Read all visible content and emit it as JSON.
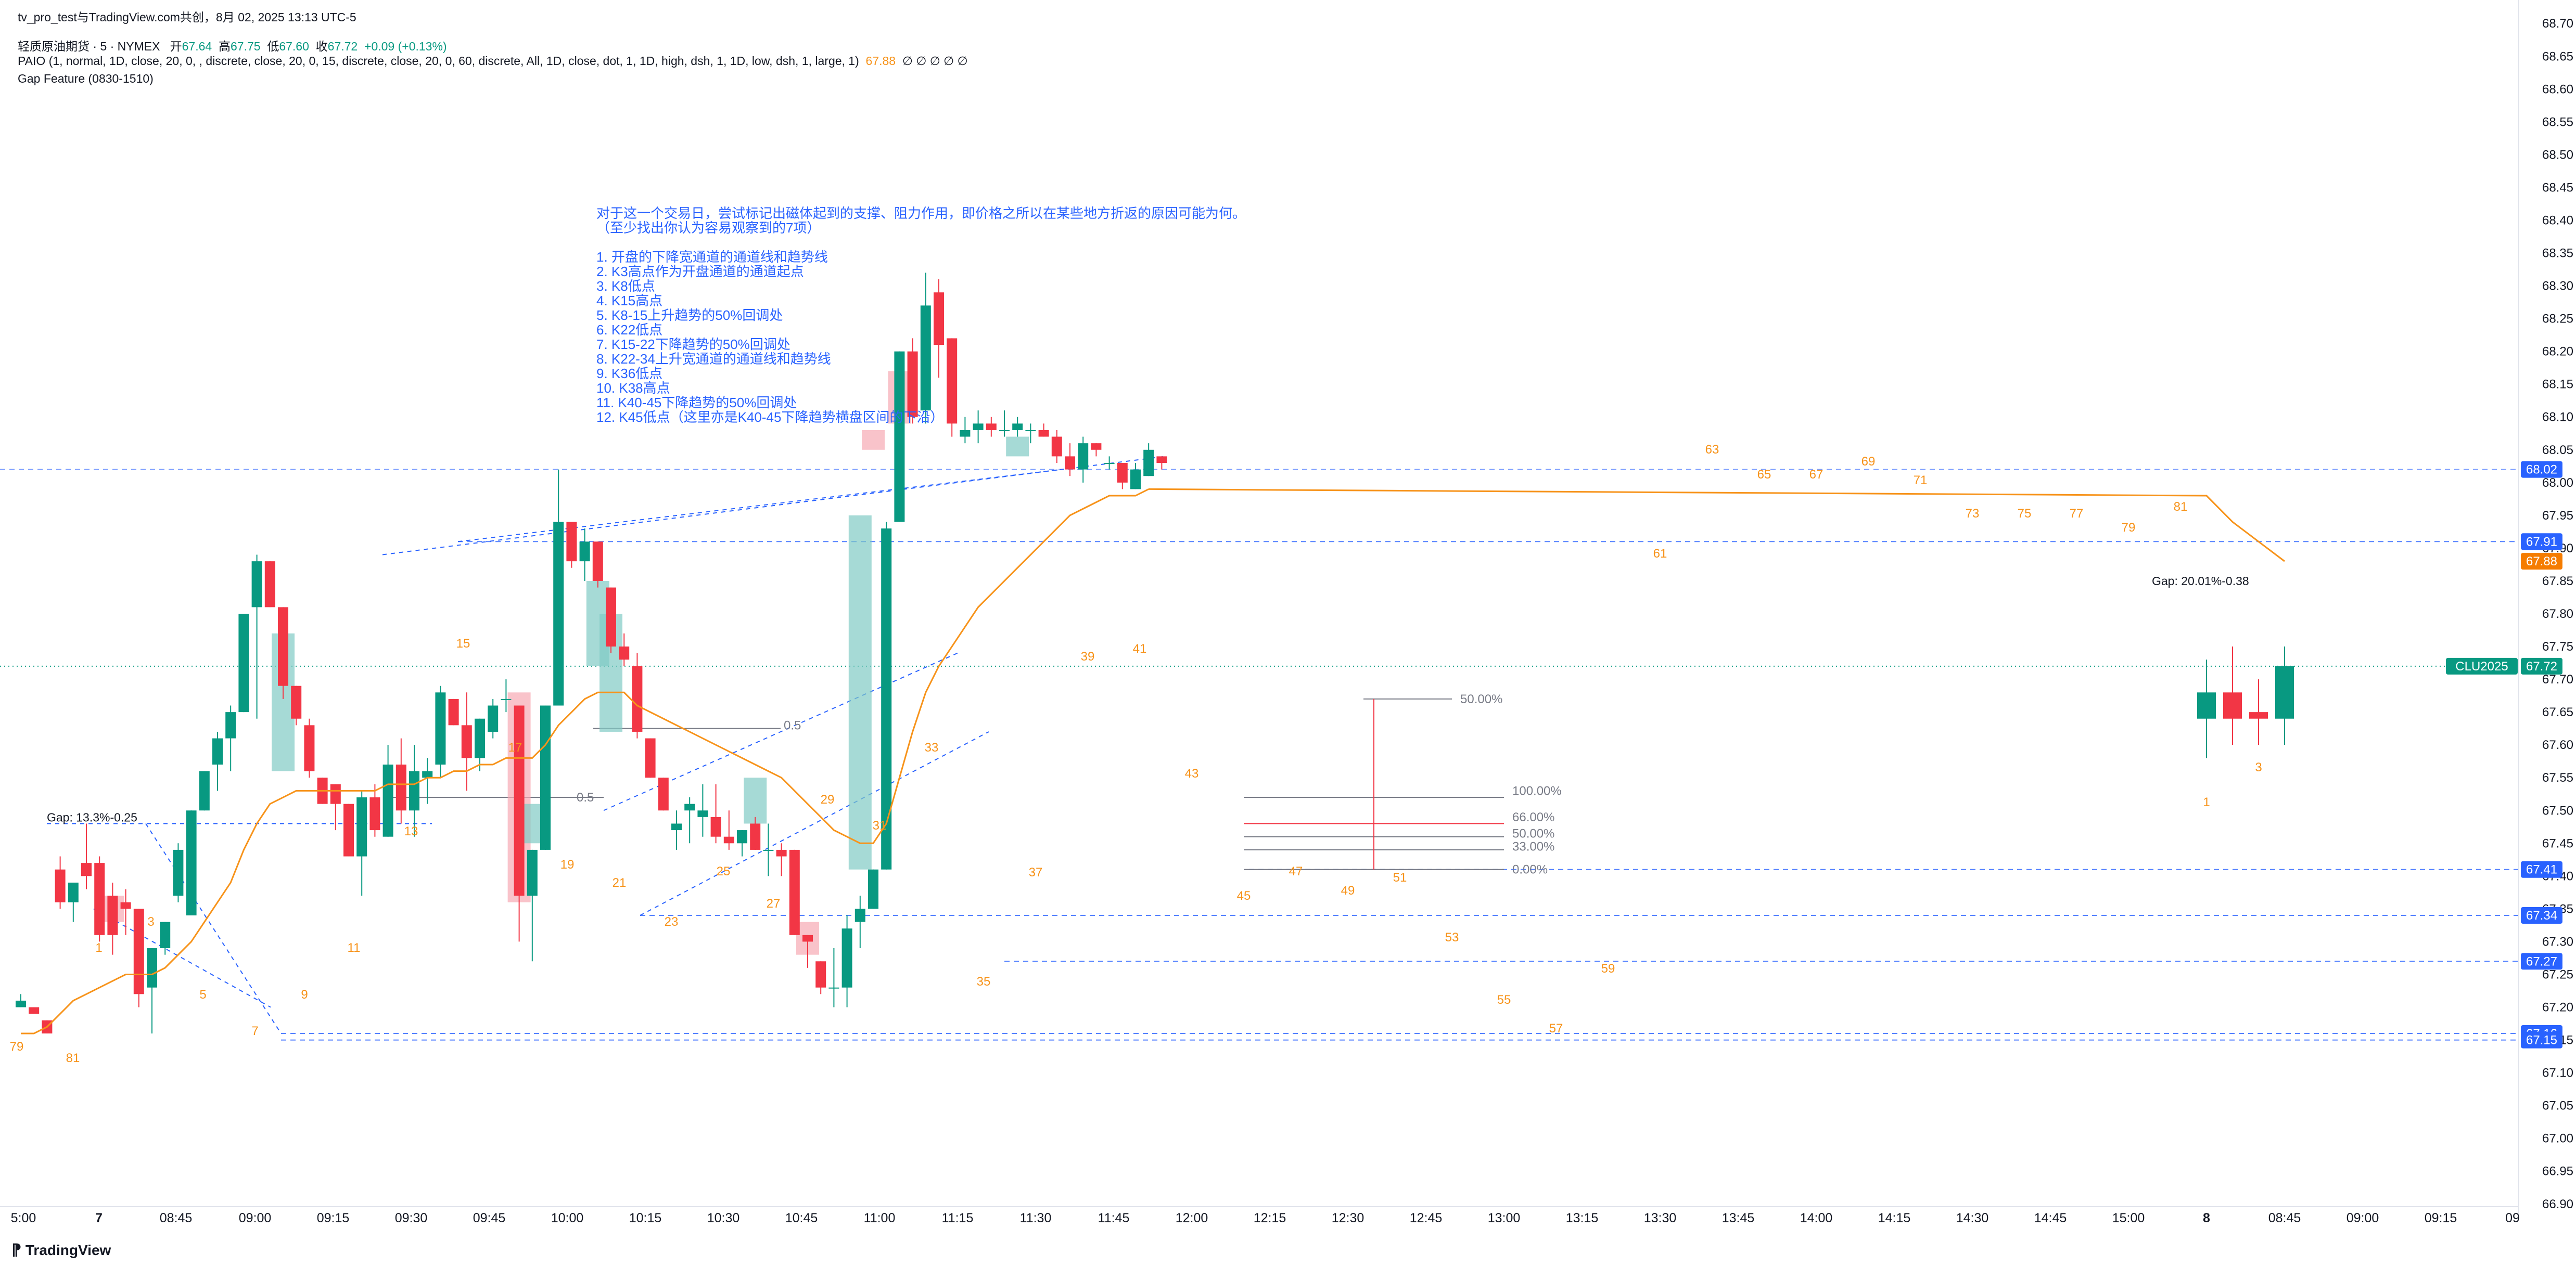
{
  "header": {
    "title": "tv_pro_test与TradingView.com共创，8月 02, 2025 13:13 UTC-5",
    "symbol_line": {
      "name": "轻质原油期货 · 5 · NYMEX",
      "open_label": "开",
      "open": "67.64",
      "high_label": "高",
      "high": "67.75",
      "low_label": "低",
      "low": "67.60",
      "close_label": "收",
      "close": "67.72",
      "change": "+0.09 (+0.13%)"
    },
    "indicator_line": "PAIO (1, normal, 1D, close, 20, 0, , discrete, close, 20, 0, 15, discrete, close, 20, 0, 60, discrete, All, 1D, close, dot, 1, 1D, high, dsh, 1, 1D, low, dsh, 1, large, 1)",
    "indicator_value": "67.88",
    "indicator_suffix": "∅ ∅ ∅ ∅ ∅",
    "gap_feature": "Gap Feature (0830-1510)"
  },
  "note": [
    "对于这一个交易日，尝试标记出磁体起到的支撑、阻力作用，即价格之所以在某些地方折返的原因可能为何。",
    "（至少找出你认为容易观察到的7项）",
    "",
    "1. 开盘的下降宽通道的通道线和趋势线",
    "2. K3高点作为开盘通道的通道起点",
    "3. K8低点",
    "4. K15高点",
    "5. K8-15上升趋势的50%回调处",
    "6. K22低点",
    "7. K15-22下降趋势的50%回调处",
    "8. K22-34上升宽通道的通道线和趋势线",
    "9. K36低点",
    "10. K38高点",
    "11. K40-45下降趋势的50%回调处",
    "12. K45低点（这里亦是K40-45下降趋势横盘区间的下沿）"
  ],
  "price_axis": {
    "labels": [
      "68.70",
      "68.65",
      "68.60",
      "68.55",
      "68.50",
      "68.45",
      "68.40",
      "68.35",
      "68.30",
      "68.25",
      "68.20",
      "68.15",
      "68.10",
      "68.05",
      "68.00",
      "67.95",
      "67.90",
      "67.85",
      "67.80",
      "67.75",
      "67.70",
      "67.65",
      "67.60",
      "67.55",
      "67.50",
      "67.45",
      "67.40",
      "67.35",
      "67.30",
      "67.25",
      "67.20",
      "67.15",
      "67.10",
      "67.05",
      "67.00",
      "66.95",
      "66.90"
    ],
    "badges": [
      {
        "value": "68.02",
        "color": "#2962ff"
      },
      {
        "value": "67.91",
        "color": "#2962ff"
      },
      {
        "value": "67.88",
        "color": "#f57c00"
      },
      {
        "value": "67.72",
        "color": "#089981"
      },
      {
        "value": "67.41",
        "color": "#2962ff"
      },
      {
        "value": "67.34",
        "color": "#2962ff"
      },
      {
        "value": "67.27",
        "color": "#2962ff"
      },
      {
        "value": "67.16",
        "color": "#2962ff"
      },
      {
        "value": "67.15",
        "color": "#2962ff"
      }
    ],
    "symbol_tag": "CLU2025"
  },
  "time_axis": [
    "5:00",
    "7",
    "08:45",
    "09:00",
    "09:15",
    "09:30",
    "09:45",
    "10:00",
    "10:15",
    "10:30",
    "10:45",
    "11:00",
    "11:15",
    "11:30",
    "11:45",
    "12:00",
    "12:15",
    "12:30",
    "12:45",
    "13:00",
    "13:15",
    "13:30",
    "13:45",
    "14:00",
    "14:15",
    "14:30",
    "14:45",
    "15:00",
    "8",
    "08:45",
    "09:00",
    "09:15",
    "09"
  ],
  "fib_labels": [
    "50.00%",
    "100.00%",
    "66.00%",
    "50.00%",
    "33.00%",
    "0.00%",
    "0.5",
    "0.5"
  ],
  "gap_labels": [
    "Gap: 13.3%-0.25",
    "Gap: 20.01%-0.38"
  ],
  "bar_numbers": [
    "79",
    "81",
    "1",
    "3",
    "5",
    "7",
    "9",
    "11",
    "13",
    "15",
    "17",
    "19",
    "21",
    "23",
    "25",
    "27",
    "29",
    "31",
    "33",
    "35",
    "37",
    "39",
    "41",
    "43",
    "45",
    "47",
    "49",
    "51",
    "53",
    "55",
    "57",
    "59",
    "61",
    "63",
    "65",
    "67",
    "69",
    "71",
    "73",
    "75",
    "77",
    "79",
    "81",
    "1",
    "3"
  ],
  "watermark": "TradingView",
  "colors": {
    "up": "#089981",
    "down": "#f23645",
    "ema": "#f7931a",
    "line": "#2962ff",
    "axis_bg": "#ffffff"
  },
  "chart_data": {
    "type": "candlestick",
    "title": "轻质原油期货 · 5 · NYMEX",
    "ylim": [
      66.88,
      68.72
    ],
    "ohlc_day1": [
      [
        67.2,
        67.22,
        67.2,
        67.21
      ],
      [
        67.2,
        67.2,
        67.19,
        67.19
      ],
      [
        67.18,
        67.18,
        67.16,
        67.16
      ],
      [
        67.41,
        67.43,
        67.35,
        67.36
      ],
      [
        67.36,
        67.39,
        67.33,
        67.39
      ],
      [
        67.42,
        67.48,
        67.38,
        67.4
      ],
      [
        67.42,
        67.43,
        67.3,
        67.31
      ],
      [
        67.37,
        67.39,
        67.28,
        67.31
      ],
      [
        67.36,
        67.38,
        67.31,
        67.35
      ],
      [
        67.35,
        67.35,
        67.2,
        67.22
      ],
      [
        67.23,
        67.29,
        67.16,
        67.29
      ],
      [
        67.29,
        67.33,
        67.28,
        67.33
      ],
      [
        67.37,
        67.45,
        67.36,
        67.44
      ],
      [
        67.34,
        67.5,
        67.34,
        67.5
      ],
      [
        67.5,
        67.56,
        67.5,
        67.56
      ],
      [
        67.57,
        67.62,
        67.53,
        67.61
      ],
      [
        67.61,
        67.66,
        67.56,
        67.65
      ],
      [
        67.65,
        67.8,
        67.65,
        67.8
      ],
      [
        67.81,
        67.89,
        67.64,
        67.88
      ],
      [
        67.88,
        67.88,
        67.81,
        67.81
      ],
      [
        67.81,
        67.81,
        67.67,
        67.69
      ],
      [
        67.69,
        67.69,
        67.63,
        67.64
      ],
      [
        67.63,
        67.64,
        67.55,
        67.56
      ],
      [
        67.55,
        67.55,
        67.51,
        67.51
      ],
      [
        67.54,
        67.54,
        67.47,
        67.51
      ],
      [
        67.51,
        67.51,
        67.43,
        67.43
      ],
      [
        67.43,
        67.53,
        67.37,
        67.52
      ],
      [
        67.52,
        67.54,
        67.46,
        67.47
      ],
      [
        67.46,
        67.6,
        67.46,
        67.57
      ],
      [
        67.57,
        67.61,
        67.48,
        67.5
      ],
      [
        67.5,
        67.6,
        67.46,
        67.56
      ],
      [
        67.55,
        67.58,
        67.51,
        67.56
      ],
      [
        67.57,
        67.69,
        67.55,
        67.68
      ],
      [
        67.67,
        67.67,
        67.63,
        67.63
      ],
      [
        67.63,
        67.68,
        67.53,
        67.58
      ],
      [
        67.58,
        67.64,
        67.56,
        67.64
      ],
      [
        67.62,
        67.67,
        67.61,
        67.66
      ],
      [
        67.67,
        67.7,
        67.65,
        67.67
      ],
      [
        67.66,
        67.66,
        67.3,
        67.37
      ],
      [
        67.37,
        67.44,
        67.27,
        67.44
      ],
      [
        67.44,
        67.66,
        67.44,
        67.66
      ],
      [
        67.66,
        68.02,
        67.66,
        67.94
      ],
      [
        67.94,
        67.94,
        67.87,
        67.88
      ],
      [
        67.88,
        67.93,
        67.85,
        67.91
      ],
      [
        67.91,
        67.91,
        67.84,
        67.85
      ],
      [
        67.84,
        67.84,
        67.74,
        67.75
      ],
      [
        67.75,
        67.77,
        67.72,
        67.73
      ],
      [
        67.72,
        67.74,
        67.61,
        67.62
      ],
      [
        67.61,
        67.61,
        67.55,
        67.55
      ],
      [
        67.55,
        67.55,
        67.5,
        67.5
      ],
      [
        67.47,
        67.5,
        67.44,
        67.48
      ],
      [
        67.5,
        67.52,
        67.45,
        67.51
      ],
      [
        67.49,
        67.54,
        67.46,
        67.5
      ],
      [
        67.49,
        67.54,
        67.45,
        67.46
      ],
      [
        67.46,
        67.5,
        67.44,
        67.45
      ],
      [
        67.45,
        67.47,
        67.43,
        67.47
      ],
      [
        67.48,
        67.49,
        67.44,
        67.44
      ],
      [
        67.44,
        67.48,
        67.4,
        67.44
      ],
      [
        67.44,
        67.45,
        67.4,
        67.43
      ],
      [
        67.44,
        67.44,
        67.31,
        67.31
      ],
      [
        67.31,
        67.31,
        67.26,
        67.3
      ],
      [
        67.27,
        67.27,
        67.22,
        67.23
      ],
      [
        67.23,
        67.29,
        67.2,
        67.23
      ],
      [
        67.23,
        67.34,
        67.2,
        67.32
      ],
      [
        67.33,
        67.37,
        67.29,
        67.35
      ],
      [
        67.35,
        67.41,
        67.35,
        67.41
      ],
      [
        67.41,
        67.94,
        67.41,
        67.93
      ],
      [
        67.94,
        68.2,
        67.94,
        68.2
      ],
      [
        68.2,
        68.22,
        68.09,
        68.1
      ],
      [
        68.11,
        68.32,
        68.09,
        68.27
      ],
      [
        68.29,
        68.31,
        68.16,
        68.21
      ],
      [
        68.22,
        68.22,
        68.07,
        68.09
      ],
      [
        68.07,
        68.1,
        68.06,
        68.08
      ],
      [
        68.08,
        68.11,
        68.06,
        68.09
      ],
      [
        68.09,
        68.1,
        68.07,
        68.08
      ],
      [
        68.08,
        68.11,
        68.07,
        68.08
      ],
      [
        68.08,
        68.1,
        68.07,
        68.09
      ],
      [
        68.08,
        68.09,
        68.06,
        68.08
      ],
      [
        68.08,
        68.09,
        68.07,
        68.07
      ],
      [
        68.07,
        68.08,
        68.03,
        68.04
      ],
      [
        68.04,
        68.06,
        68.01,
        68.02
      ],
      [
        68.02,
        68.07,
        68.0,
        68.06
      ],
      [
        68.06,
        68.06,
        68.04,
        68.05
      ],
      [
        68.03,
        68.04,
        68.02,
        68.03
      ],
      [
        68.03,
        68.03,
        67.99,
        68.0
      ],
      [
        67.99,
        68.03,
        67.99,
        68.02
      ],
      [
        68.01,
        68.06,
        68.01,
        68.05
      ],
      [
        68.04,
        68.04,
        68.02,
        68.03
      ]
    ],
    "ohlc_day2": [
      [
        67.64,
        67.73,
        67.58,
        67.68
      ],
      [
        67.68,
        67.75,
        67.6,
        67.64
      ],
      [
        67.65,
        67.7,
        67.6,
        67.64
      ],
      [
        67.64,
        67.75,
        67.6,
        67.72
      ]
    ],
    "ema": [
      67.16,
      67.16,
      67.17,
      67.19,
      67.21,
      67.22,
      67.23,
      67.24,
      67.25,
      67.25,
      67.25,
      67.26,
      67.28,
      67.3,
      67.33,
      67.36,
      67.39,
      67.44,
      67.48,
      67.51,
      67.52,
      67.53,
      67.53,
      67.53,
      67.53,
      67.53,
      67.53,
      67.53,
      67.54,
      67.54,
      67.54,
      67.55,
      67.55,
      67.56,
      67.56,
      67.57,
      67.57,
      67.58,
      67.58,
      67.58,
      67.6,
      67.63,
      67.65,
      67.67,
      67.68,
      67.68,
      67.68,
      67.66,
      67.65,
      67.64,
      67.63,
      67.62,
      67.61,
      67.6,
      67.59,
      67.58,
      67.57,
      67.56,
      67.55,
      67.53,
      67.51,
      67.49,
      67.47,
      67.46,
      67.45,
      67.45,
      67.48,
      67.55,
      67.62,
      67.68,
      67.72,
      67.75,
      67.78,
      67.81,
      67.83,
      67.85,
      67.87,
      67.89,
      67.91,
      67.93,
      67.95,
      67.96,
      67.97,
      67.98,
      67.98,
      67.98,
      67.99
    ],
    "ema_day2": [
      67.98,
      67.94,
      67.91,
      67.88
    ]
  }
}
